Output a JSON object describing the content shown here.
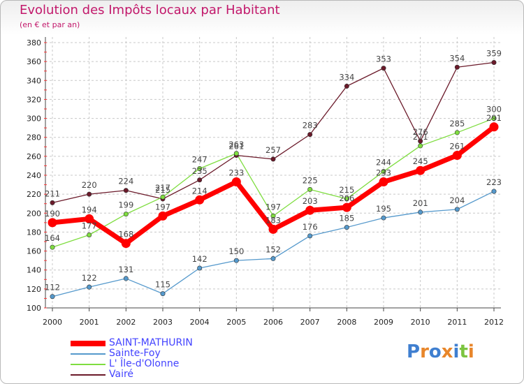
{
  "title": "Evolution des Impôts locaux par Habitant",
  "subtitle": "(en € et par an)",
  "logo_text": "Proxiti",
  "chart_data": {
    "type": "line",
    "title": "Evolution des Impôts locaux par Habitant",
    "ylabel": "(en € et par an)",
    "xlabel": "",
    "x": [
      2000,
      2001,
      2002,
      2003,
      2004,
      2005,
      2006,
      2007,
      2008,
      2009,
      2010,
      2011,
      2012
    ],
    "ylim": [
      100,
      380
    ],
    "yticks": [
      100,
      120,
      140,
      160,
      180,
      200,
      220,
      240,
      260,
      280,
      300,
      320,
      340,
      360,
      380
    ],
    "grid": true,
    "legend_position": "bottom-left",
    "series": [
      {
        "name": "Vairé",
        "color": "#6b1a2a",
        "width": 1.3,
        "values": [
          211,
          220,
          224,
          215,
          235,
          261,
          257,
          283,
          334,
          353,
          276,
          354,
          359
        ]
      },
      {
        "name": "L' Île-d'Olonne",
        "color": "#7fdd40",
        "width": 1.3,
        "values": [
          164,
          177,
          199,
          217,
          247,
          263,
          197,
          225,
          215,
          244,
          271,
          285,
          300
        ]
      },
      {
        "name": "Sainte-Foy",
        "color": "#5599cc",
        "width": 1.3,
        "values": [
          112,
          122,
          131,
          115,
          142,
          150,
          152,
          176,
          185,
          195,
          201,
          204,
          223
        ]
      },
      {
        "name": "SAINT-MATHURIN",
        "color": "#ff0000",
        "width": 7,
        "values": [
          190,
          194,
          168,
          197,
          214,
          233,
          183,
          203,
          206,
          233,
          245,
          261,
          291
        ]
      }
    ]
  },
  "legend": [
    {
      "name": "SAINT-MATHURIN",
      "color": "#ff0000"
    },
    {
      "name": "Sainte-Foy",
      "color": "#5599cc"
    },
    {
      "name": "L' Île-d'Olonne",
      "color": "#7fdd40"
    },
    {
      "name": "Vairé",
      "color": "#6b1a2a"
    }
  ]
}
